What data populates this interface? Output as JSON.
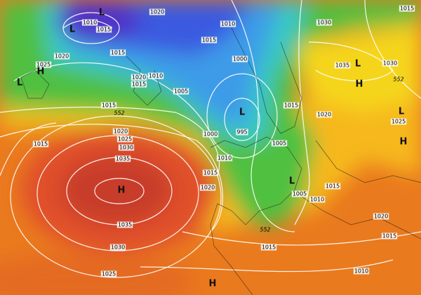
{
  "map": {
    "isobar_labels": [
      "1010",
      "1015",
      "1020",
      "1010",
      "1015",
      "1015",
      "1020",
      "1025",
      "1020",
      "1010",
      "1015",
      "1005",
      "1000",
      "1030",
      "1015",
      "1035",
      "1030",
      "1015",
      "1020",
      "1025",
      "1015",
      "1020",
      "1025",
      "1030",
      "1035",
      "1015",
      "1000",
      "995",
      "1005",
      "1010",
      "1015",
      "1020",
      "1015",
      "1005",
      "1010",
      "1020",
      "1035",
      "1030",
      "1015",
      "1015",
      "1025",
      "1010"
    ],
    "height_labels": [
      "552",
      "552",
      "552"
    ],
    "pressure_centers": [
      "L",
      "L",
      "H",
      "L",
      "L",
      "H",
      "L",
      "H",
      "L",
      "H",
      "H",
      "L"
    ]
  }
}
